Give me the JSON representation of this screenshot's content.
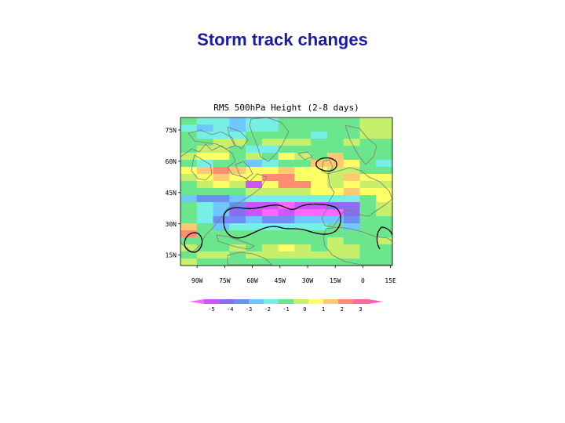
{
  "slide": {
    "title": "Storm track changes"
  },
  "map": {
    "title": "RMS 500hPa Height (2-8 days)",
    "lat_labels": [
      "75N",
      "60N",
      "45N",
      "30N",
      "15N"
    ],
    "lon_labels": [
      "90W",
      "75W",
      "60W",
      "45W",
      "30W",
      "15W",
      "0",
      "15E"
    ],
    "lat_range": [
      10,
      81
    ],
    "lon_range": [
      -99,
      16
    ],
    "grid": [
      [
        6,
        6,
        5,
        5,
        5,
        5,
        4,
        4,
        5,
        5,
        5,
        5,
        6,
        6,
        6,
        6,
        6,
        6,
        6,
        6,
        6,
        6,
        7,
        7,
        7,
        7
      ],
      [
        5,
        5,
        4,
        4,
        5,
        5,
        4,
        4,
        5,
        5,
        5,
        5,
        6,
        6,
        6,
        6,
        6,
        6,
        6,
        6,
        6,
        6,
        7,
        7,
        7,
        7
      ],
      [
        6,
        6,
        5,
        5,
        5,
        5,
        5,
        5,
        6,
        6,
        6,
        6,
        6,
        6,
        6,
        6,
        5,
        5,
        6,
        6,
        6,
        6,
        7,
        7,
        7,
        7
      ],
      [
        6,
        6,
        6,
        6,
        7,
        7,
        7,
        7,
        6,
        6,
        7,
        7,
        7,
        7,
        7,
        7,
        6,
        6,
        6,
        6,
        7,
        7,
        6,
        6,
        6,
        6
      ],
      [
        6,
        6,
        7,
        7,
        7,
        7,
        6,
        6,
        5,
        5,
        5,
        5,
        6,
        6,
        6,
        6,
        6,
        6,
        6,
        6,
        6,
        6,
        6,
        6,
        6,
        6
      ],
      [
        7,
        7,
        8,
        8,
        8,
        8,
        6,
        6,
        7,
        7,
        6,
        6,
        8,
        8,
        7,
        7,
        6,
        6,
        9,
        9,
        6,
        6,
        6,
        6,
        6,
        6
      ],
      [
        6,
        6,
        5,
        5,
        6,
        6,
        6,
        6,
        4,
        4,
        5,
        5,
        6,
        6,
        6,
        6,
        9,
        9,
        9,
        9,
        8,
        8,
        6,
        6,
        5,
        5
      ],
      [
        8,
        8,
        9,
        9,
        10,
        10,
        9,
        9,
        8,
        8,
        8,
        8,
        9,
        9,
        8,
        8,
        8,
        8,
        7,
        7,
        7,
        7,
        6,
        6,
        6,
        6
      ],
      [
        7,
        7,
        8,
        8,
        9,
        9,
        8,
        8,
        8,
        8,
        10,
        10,
        10,
        10,
        8,
        8,
        8,
        8,
        7,
        7,
        9,
        9,
        8,
        8,
        8,
        8
      ],
      [
        6,
        6,
        7,
        7,
        8,
        8,
        7,
        7,
        1,
        1,
        8,
        8,
        10,
        10,
        10,
        10,
        8,
        8,
        7,
        7,
        8,
        8,
        7,
        7,
        7,
        7
      ],
      [
        6,
        6,
        6,
        6,
        6,
        6,
        6,
        6,
        7,
        7,
        7,
        7,
        7,
        7,
        7,
        7,
        8,
        8,
        8,
        8,
        9,
        9,
        8,
        8,
        8,
        8
      ],
      [
        4,
        4,
        3,
        3,
        3,
        3,
        4,
        4,
        5,
        5,
        5,
        5,
        5,
        5,
        5,
        5,
        5,
        5,
        5,
        5,
        5,
        5,
        6,
        6,
        8,
        8
      ],
      [
        6,
        6,
        5,
        5,
        4,
        4,
        3,
        3,
        1,
        1,
        1,
        1,
        0,
        0,
        1,
        1,
        1,
        1,
        2,
        2,
        2,
        2,
        6,
        6,
        7,
        7
      ],
      [
        6,
        6,
        5,
        5,
        4,
        4,
        2,
        2,
        1,
        1,
        0,
        0,
        1,
        1,
        0,
        0,
        0,
        0,
        0,
        0,
        2,
        2,
        6,
        6,
        7,
        7
      ],
      [
        6,
        6,
        5,
        5,
        3,
        3,
        3,
        3,
        4,
        4,
        3,
        3,
        3,
        3,
        4,
        4,
        4,
        4,
        4,
        4,
        3,
        3,
        6,
        6,
        6,
        6
      ],
      [
        9,
        9,
        6,
        6,
        4,
        4,
        5,
        5,
        5,
        5,
        5,
        5,
        5,
        5,
        5,
        5,
        5,
        5,
        6,
        6,
        4,
        4,
        6,
        6,
        6,
        6
      ],
      [
        10,
        10,
        6,
        6,
        6,
        6,
        6,
        6,
        6,
        6,
        6,
        6,
        6,
        6,
        6,
        6,
        6,
        6,
        6,
        6,
        6,
        6,
        6,
        6,
        6,
        6
      ],
      [
        6,
        6,
        6,
        6,
        6,
        6,
        6,
        6,
        6,
        6,
        6,
        6,
        6,
        6,
        6,
        6,
        6,
        6,
        7,
        7,
        6,
        6,
        6,
        6,
        7,
        7
      ],
      [
        7,
        7,
        6,
        6,
        6,
        6,
        7,
        7,
        6,
        6,
        7,
        7,
        8,
        8,
        7,
        7,
        6,
        6,
        7,
        7,
        7,
        7,
        6,
        6,
        6,
        6
      ],
      [
        6,
        6,
        7,
        7,
        7,
        7,
        6,
        6,
        7,
        7,
        7,
        7,
        7,
        7,
        7,
        7,
        7,
        7,
        7,
        7,
        7,
        7,
        6,
        6,
        6,
        6
      ],
      [
        7,
        7,
        6,
        6,
        6,
        6,
        6,
        6,
        6,
        6,
        6,
        6,
        6,
        6,
        6,
        6,
        6,
        6,
        6,
        6,
        6,
        6,
        6,
        6,
        6,
        6
      ]
    ],
    "colorbar": {
      "colors": [
        "#ff66ff",
        "#cc55ff",
        "#8c6cf0",
        "#6e8ff2",
        "#6ec8ff",
        "#76f0e4",
        "#6ce68c",
        "#c6f06c",
        "#ffff66",
        "#ffc873",
        "#ff8c73",
        "#ff6699",
        "#ff5cba"
      ],
      "labels": [
        "-5",
        "-4",
        "-3",
        "-2",
        "-1",
        "0",
        "1",
        "2",
        "3"
      ],
      "cell_colors": [
        "#cc55ff",
        "#8c6cf0",
        "#6e8ff2",
        "#6ec8ff",
        "#76f0e4",
        "#6ce68c",
        "#c6f06c",
        "#ffff66",
        "#ffc873",
        "#ff8c73",
        "#ff6699"
      ]
    },
    "contour_color": "#000000",
    "coast_color": "#7a7a7a"
  }
}
